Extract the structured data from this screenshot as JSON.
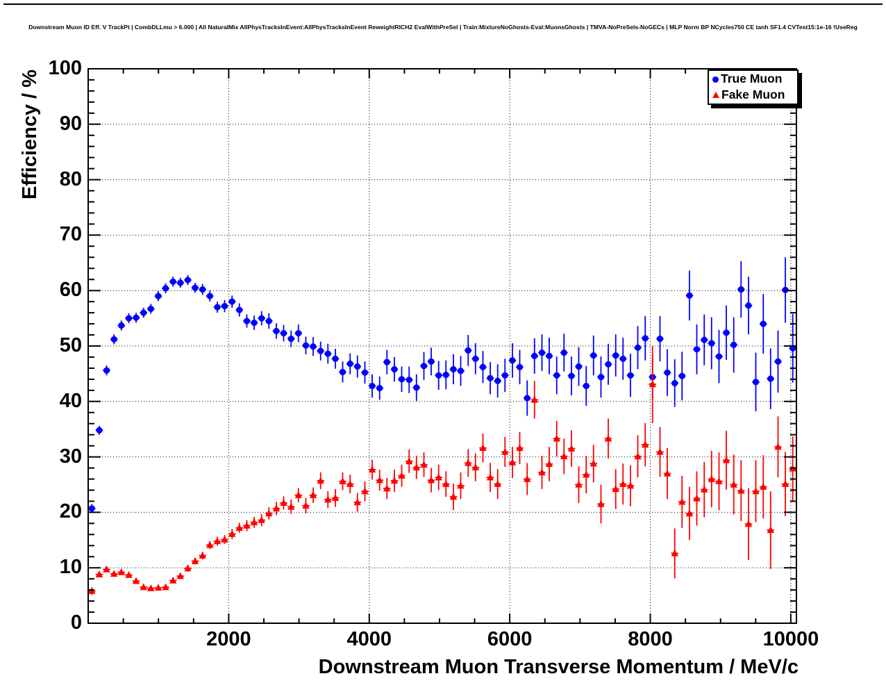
{
  "title": "Downstream Muon ID Eff. V TrackPt | CombDLLmu > 6.000 | All NaturalMix AllPhysTracksInEvent:AllPhysTracksInEvent ReweightRICH2 EvalWithPreSel | Train:MixtureNoGhosts-Eval:MuonsGhosts | TMVA-NoPreSels-NoGECs | MLP Norm BP NCycles750 CE tanh SF1.4 CVTest15:1e-16 !UseReg",
  "legend": {
    "entries": [
      {
        "label": "True Muon",
        "marker": "circle",
        "color": "#0000ff"
      },
      {
        "label": "Fake Muon",
        "marker": "triangle",
        "color": "#ff0000"
      }
    ]
  },
  "axes": {
    "x": {
      "label": "Downstream Muon Transverse Momentum / MeV/c",
      "major_ticks": [
        2000,
        4000,
        6000,
        8000,
        10000
      ],
      "tick_labels": [
        "2000",
        "4000",
        "6000",
        "8000",
        "10000"
      ],
      "minor_step": 500
    },
    "y": {
      "label": "Efficiency / %",
      "major_ticks": [
        0,
        10,
        20,
        30,
        40,
        50,
        60,
        70,
        80,
        90,
        100
      ],
      "tick_labels": [
        "0",
        "10",
        "20",
        "30",
        "40",
        "50",
        "60",
        "70",
        "80",
        "90",
        "100"
      ],
      "minor_step": 2
    }
  },
  "chart_data": {
    "type": "scatter",
    "title": "Downstream Muon ID Eff. V TrackPt",
    "xlabel": "Downstream Muon Transverse Momentum / MeV/c",
    "ylabel": "Efficiency / %",
    "xlim": [
      0,
      10080
    ],
    "ylim": [
      0,
      100
    ],
    "grid": true,
    "grid_style": "dotted",
    "legend_position": "top-right",
    "x_bin_halfwidth": 52.5,
    "series": [
      {
        "name": "True Muon",
        "color": "#0000ff",
        "marker": "circle",
        "points": [
          [
            52,
            20.7,
            0.8
          ],
          [
            158,
            34.8,
            0.8
          ],
          [
            262,
            45.6,
            0.9
          ],
          [
            368,
            51.2,
            0.9
          ],
          [
            472,
            53.7,
            0.9
          ],
          [
            578,
            55.0,
            0.9
          ],
          [
            682,
            55.1,
            0.9
          ],
          [
            788,
            56.0,
            0.9
          ],
          [
            892,
            56.7,
            0.9
          ],
          [
            998,
            59.0,
            0.9
          ],
          [
            1102,
            60.4,
            0.9
          ],
          [
            1208,
            61.6,
            0.9
          ],
          [
            1312,
            61.4,
            0.9
          ],
          [
            1418,
            61.9,
            0.9
          ],
          [
            1522,
            60.5,
            0.9
          ],
          [
            1628,
            60.2,
            1.0
          ],
          [
            1732,
            59.0,
            1.0
          ],
          [
            1838,
            57.0,
            1.0
          ],
          [
            1942,
            57.2,
            1.1
          ],
          [
            2048,
            58.0,
            1.1
          ],
          [
            2152,
            56.5,
            1.2
          ],
          [
            2258,
            54.5,
            1.2
          ],
          [
            2362,
            54.2,
            1.3
          ],
          [
            2468,
            55.0,
            1.3
          ],
          [
            2572,
            54.5,
            1.4
          ],
          [
            2678,
            52.7,
            1.4
          ],
          [
            2782,
            52.3,
            1.5
          ],
          [
            2888,
            51.3,
            1.5
          ],
          [
            2992,
            52.3,
            1.6
          ],
          [
            3098,
            50.1,
            1.6
          ],
          [
            3202,
            49.9,
            1.7
          ],
          [
            3308,
            49.1,
            1.7
          ],
          [
            3412,
            48.6,
            1.8
          ],
          [
            3518,
            47.7,
            1.8
          ],
          [
            3622,
            45.3,
            1.9
          ],
          [
            3728,
            46.8,
            1.9
          ],
          [
            3832,
            46.3,
            2.0
          ],
          [
            3938,
            45.2,
            2.0
          ],
          [
            4042,
            42.8,
            2.1
          ],
          [
            4148,
            42.4,
            2.1
          ],
          [
            4252,
            47.1,
            2.2
          ],
          [
            4358,
            45.8,
            2.2
          ],
          [
            4462,
            44.0,
            2.3
          ],
          [
            4568,
            43.9,
            2.4
          ],
          [
            4672,
            42.5,
            2.4
          ],
          [
            4778,
            46.4,
            2.5
          ],
          [
            4882,
            47.2,
            2.5
          ],
          [
            4988,
            44.7,
            2.6
          ],
          [
            5092,
            44.8,
            2.6
          ],
          [
            5198,
            45.8,
            2.7
          ],
          [
            5302,
            45.5,
            2.7
          ],
          [
            5408,
            49.2,
            2.8
          ],
          [
            5512,
            47.7,
            2.8
          ],
          [
            5618,
            46.2,
            2.9
          ],
          [
            5722,
            44.2,
            2.9
          ],
          [
            5828,
            43.7,
            3.0
          ],
          [
            5932,
            44.7,
            3.0
          ],
          [
            6038,
            47.4,
            3.1
          ],
          [
            6142,
            46.2,
            3.1
          ],
          [
            6248,
            40.6,
            3.2
          ],
          [
            6352,
            48.2,
            3.2
          ],
          [
            6458,
            48.8,
            3.3
          ],
          [
            6562,
            48.2,
            3.3
          ],
          [
            6668,
            44.7,
            3.4
          ],
          [
            6772,
            48.8,
            3.4
          ],
          [
            6878,
            44.6,
            3.5
          ],
          [
            6982,
            46.3,
            3.5
          ],
          [
            7088,
            42.8,
            3.6
          ],
          [
            7192,
            48.3,
            3.6
          ],
          [
            7298,
            44.4,
            3.7
          ],
          [
            7402,
            46.7,
            3.7
          ],
          [
            7508,
            48.3,
            3.8
          ],
          [
            7612,
            47.7,
            3.8
          ],
          [
            7718,
            44.7,
            3.9
          ],
          [
            7822,
            49.7,
            3.9
          ],
          [
            7928,
            51.4,
            4.0
          ],
          [
            8032,
            44.4,
            4.0
          ],
          [
            8138,
            51.3,
            4.1
          ],
          [
            8242,
            45.2,
            4.2
          ],
          [
            8348,
            43.3,
            4.3
          ],
          [
            8452,
            44.6,
            4.4
          ],
          [
            8558,
            59.1,
            4.5
          ],
          [
            8662,
            49.4,
            4.5
          ],
          [
            8768,
            51.1,
            4.6
          ],
          [
            8872,
            50.5,
            4.7
          ],
          [
            8978,
            48.1,
            4.8
          ],
          [
            9082,
            52.4,
            4.9
          ],
          [
            9188,
            50.2,
            5.0
          ],
          [
            9292,
            60.2,
            5.1
          ],
          [
            9398,
            57.3,
            5.2
          ],
          [
            9502,
            43.5,
            5.3
          ],
          [
            9608,
            54.0,
            5.4
          ],
          [
            9712,
            44.1,
            5.5
          ],
          [
            9818,
            47.2,
            5.6
          ],
          [
            9922,
            60.1,
            5.9
          ],
          [
            10028,
            49.6,
            6.2
          ]
        ]
      },
      {
        "name": "Fake Muon",
        "color": "#ff0000",
        "marker": "triangle",
        "points": [
          [
            52,
            5.8,
            0.7
          ],
          [
            158,
            8.8,
            0.5
          ],
          [
            262,
            9.7,
            0.5
          ],
          [
            368,
            8.9,
            0.5
          ],
          [
            472,
            9.2,
            0.5
          ],
          [
            578,
            8.7,
            0.5
          ],
          [
            682,
            7.6,
            0.5
          ],
          [
            788,
            6.5,
            0.4
          ],
          [
            892,
            6.3,
            0.4
          ],
          [
            998,
            6.4,
            0.4
          ],
          [
            1102,
            6.5,
            0.4
          ],
          [
            1208,
            7.7,
            0.5
          ],
          [
            1312,
            8.5,
            0.5
          ],
          [
            1418,
            9.9,
            0.6
          ],
          [
            1522,
            11.2,
            0.6
          ],
          [
            1628,
            12.2,
            0.7
          ],
          [
            1732,
            14.1,
            0.7
          ],
          [
            1838,
            14.8,
            0.8
          ],
          [
            1942,
            15.1,
            0.8
          ],
          [
            2048,
            16.1,
            0.9
          ],
          [
            2152,
            17.2,
            0.9
          ],
          [
            2258,
            17.6,
            1.0
          ],
          [
            2362,
            18.2,
            1.0
          ],
          [
            2468,
            18.6,
            1.1
          ],
          [
            2572,
            19.8,
            1.1
          ],
          [
            2678,
            20.7,
            1.2
          ],
          [
            2782,
            21.7,
            1.2
          ],
          [
            2888,
            21.0,
            1.3
          ],
          [
            2992,
            23.1,
            1.3
          ],
          [
            3098,
            21.2,
            1.4
          ],
          [
            3202,
            23.1,
            1.4
          ],
          [
            3308,
            25.7,
            1.5
          ],
          [
            3412,
            22.3,
            1.5
          ],
          [
            3518,
            22.6,
            1.6
          ],
          [
            3622,
            25.6,
            1.6
          ],
          [
            3728,
            25.1,
            1.7
          ],
          [
            3832,
            21.8,
            1.7
          ],
          [
            3938,
            23.8,
            1.8
          ],
          [
            4042,
            27.7,
            1.8
          ],
          [
            4148,
            25.8,
            1.9
          ],
          [
            4252,
            24.3,
            1.9
          ],
          [
            4358,
            25.7,
            2.0
          ],
          [
            4462,
            26.6,
            2.0
          ],
          [
            4568,
            29.2,
            2.1
          ],
          [
            4672,
            28.1,
            2.1
          ],
          [
            4778,
            28.6,
            2.2
          ],
          [
            4882,
            25.8,
            2.2
          ],
          [
            4988,
            26.3,
            2.3
          ],
          [
            5092,
            25.1,
            2.3
          ],
          [
            5198,
            22.8,
            2.4
          ],
          [
            5302,
            24.8,
            2.4
          ],
          [
            5408,
            28.9,
            2.5
          ],
          [
            5512,
            28.1,
            2.5
          ],
          [
            5618,
            31.6,
            2.6
          ],
          [
            5722,
            26.3,
            2.6
          ],
          [
            5828,
            25.1,
            2.7
          ],
          [
            5932,
            30.9,
            2.7
          ],
          [
            6038,
            29.0,
            2.8
          ],
          [
            6142,
            31.6,
            2.9
          ],
          [
            6248,
            26.0,
            2.9
          ],
          [
            6352,
            40.3,
            3.4
          ],
          [
            6458,
            27.2,
            3.0
          ],
          [
            6562,
            28.7,
            3.1
          ],
          [
            6668,
            33.3,
            3.2
          ],
          [
            6772,
            30.1,
            3.2
          ],
          [
            6878,
            31.5,
            3.3
          ],
          [
            6982,
            25.0,
            3.3
          ],
          [
            7088,
            26.8,
            3.4
          ],
          [
            7192,
            28.8,
            3.4
          ],
          [
            7298,
            21.5,
            3.5
          ],
          [
            7402,
            33.3,
            3.6
          ],
          [
            7508,
            24.2,
            3.6
          ],
          [
            7612,
            25.1,
            3.7
          ],
          [
            7718,
            24.8,
            3.7
          ],
          [
            7822,
            30.1,
            3.8
          ],
          [
            7928,
            32.2,
            3.9
          ],
          [
            8032,
            43.1,
            7.0
          ],
          [
            8138,
            30.9,
            4.5
          ],
          [
            8242,
            27.0,
            4.6
          ],
          [
            8348,
            12.6,
            4.5
          ],
          [
            8452,
            21.9,
            4.7
          ],
          [
            8558,
            19.8,
            4.8
          ],
          [
            8662,
            22.5,
            4.9
          ],
          [
            8768,
            24.1,
            5.0
          ],
          [
            8872,
            26.0,
            5.1
          ],
          [
            8978,
            25.6,
            5.2
          ],
          [
            9082,
            29.4,
            5.3
          ],
          [
            9188,
            25.0,
            5.4
          ],
          [
            9292,
            23.9,
            5.5
          ],
          [
            9398,
            17.9,
            6.5
          ],
          [
            9502,
            23.8,
            5.6
          ],
          [
            9608,
            24.6,
            5.7
          ],
          [
            9712,
            16.8,
            7.0
          ],
          [
            9818,
            31.8,
            5.5
          ],
          [
            9922,
            25.1,
            5.8
          ],
          [
            10028,
            27.9,
            5.8
          ]
        ]
      }
    ]
  },
  "colors": {
    "true_muon": "#0000ff",
    "fake_muon": "#ff0000",
    "frame": "#000000",
    "grid": "#000000",
    "background": "#ffffff"
  }
}
